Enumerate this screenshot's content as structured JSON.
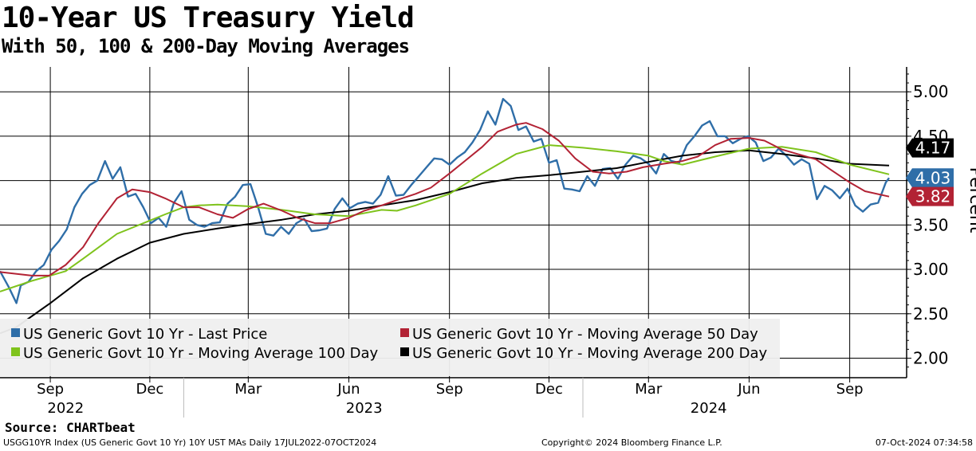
{
  "chart_data": {
    "type": "line",
    "title": "10-Year US Treasury Yield",
    "subtitle": "With 50, 100 & 200-Day Moving Averages",
    "ylabel": "Percent",
    "ylim": [
      1.78,
      5.28
    ],
    "y_ticks": [
      "5.00",
      "4.50",
      "4.00",
      "3.50",
      "3.00",
      "2.50",
      "2.00"
    ],
    "y_tick_values": [
      5.0,
      4.5,
      4.0,
      3.5,
      3.0,
      2.5,
      2.0
    ],
    "x_range": [
      "2022-07-17",
      "2024-10-07"
    ],
    "month_ticks": [
      {
        "label": "Sep",
        "date": "2022-09-01"
      },
      {
        "label": "Dec",
        "date": "2022-12-01"
      },
      {
        "label": "Mar",
        "date": "2023-03-01"
      },
      {
        "label": "Jun",
        "date": "2023-06-01"
      },
      {
        "label": "Sep",
        "date": "2023-09-01"
      },
      {
        "label": "Dec",
        "date": "2023-12-01"
      },
      {
        "label": "Mar",
        "date": "2024-03-01"
      },
      {
        "label": "Jun",
        "date": "2024-06-01"
      },
      {
        "label": "Sep",
        "date": "2024-09-01"
      }
    ],
    "year_labels": [
      {
        "label": "2022",
        "date": "2022-09-15"
      },
      {
        "label": "2023",
        "date": "2023-06-15"
      },
      {
        "label": "2024",
        "date": "2024-04-25"
      }
    ],
    "year_separators": [
      "2023-01-01",
      "2024-01-01"
    ],
    "grid": true,
    "legend_position": "bottom-left",
    "series": [
      {
        "name": "US Generic Govt 10 Yr - Last Price",
        "color": "#2f6ea8",
        "points": [
          [
            "2022-07-17",
            2.98
          ],
          [
            "2022-07-25",
            2.8
          ],
          [
            "2022-08-01",
            2.62
          ],
          [
            "2022-08-05",
            2.82
          ],
          [
            "2022-08-12",
            2.86
          ],
          [
            "2022-08-19",
            2.98
          ],
          [
            "2022-08-26",
            3.05
          ],
          [
            "2022-09-02",
            3.22
          ],
          [
            "2022-09-09",
            3.32
          ],
          [
            "2022-09-16",
            3.45
          ],
          [
            "2022-09-23",
            3.7
          ],
          [
            "2022-09-30",
            3.85
          ],
          [
            "2022-10-07",
            3.95
          ],
          [
            "2022-10-14",
            4.0
          ],
          [
            "2022-10-21",
            4.22
          ],
          [
            "2022-10-28",
            4.02
          ],
          [
            "2022-11-04",
            4.15
          ],
          [
            "2022-11-11",
            3.82
          ],
          [
            "2022-11-18",
            3.85
          ],
          [
            "2022-11-25",
            3.7
          ],
          [
            "2022-12-02",
            3.52
          ],
          [
            "2022-12-09",
            3.58
          ],
          [
            "2022-12-16",
            3.48
          ],
          [
            "2022-12-23",
            3.75
          ],
          [
            "2022-12-30",
            3.88
          ],
          [
            "2023-01-06",
            3.56
          ],
          [
            "2023-01-13",
            3.5
          ],
          [
            "2023-01-20",
            3.48
          ],
          [
            "2023-01-27",
            3.52
          ],
          [
            "2023-02-03",
            3.53
          ],
          [
            "2023-02-10",
            3.74
          ],
          [
            "2023-02-17",
            3.82
          ],
          [
            "2023-02-24",
            3.95
          ],
          [
            "2023-03-03",
            3.96
          ],
          [
            "2023-03-10",
            3.7
          ],
          [
            "2023-03-17",
            3.4
          ],
          [
            "2023-03-24",
            3.38
          ],
          [
            "2023-03-31",
            3.48
          ],
          [
            "2023-04-07",
            3.4
          ],
          [
            "2023-04-14",
            3.52
          ],
          [
            "2023-04-21",
            3.57
          ],
          [
            "2023-04-28",
            3.43
          ],
          [
            "2023-05-05",
            3.44
          ],
          [
            "2023-05-12",
            3.46
          ],
          [
            "2023-05-19",
            3.68
          ],
          [
            "2023-05-26",
            3.8
          ],
          [
            "2023-06-02",
            3.69
          ],
          [
            "2023-06-09",
            3.74
          ],
          [
            "2023-06-16",
            3.76
          ],
          [
            "2023-06-23",
            3.74
          ],
          [
            "2023-06-30",
            3.84
          ],
          [
            "2023-07-07",
            4.05
          ],
          [
            "2023-07-14",
            3.83
          ],
          [
            "2023-07-21",
            3.84
          ],
          [
            "2023-07-28",
            3.95
          ],
          [
            "2023-08-04",
            4.05
          ],
          [
            "2023-08-11",
            4.15
          ],
          [
            "2023-08-18",
            4.25
          ],
          [
            "2023-08-25",
            4.24
          ],
          [
            "2023-09-01",
            4.18
          ],
          [
            "2023-09-08",
            4.26
          ],
          [
            "2023-09-15",
            4.32
          ],
          [
            "2023-09-22",
            4.43
          ],
          [
            "2023-09-29",
            4.57
          ],
          [
            "2023-10-06",
            4.78
          ],
          [
            "2023-10-13",
            4.63
          ],
          [
            "2023-10-20",
            4.92
          ],
          [
            "2023-10-27",
            4.84
          ],
          [
            "2023-11-03",
            4.57
          ],
          [
            "2023-11-10",
            4.61
          ],
          [
            "2023-11-17",
            4.44
          ],
          [
            "2023-11-24",
            4.47
          ],
          [
            "2023-12-01",
            4.2
          ],
          [
            "2023-12-08",
            4.23
          ],
          [
            "2023-12-15",
            3.91
          ],
          [
            "2023-12-22",
            3.9
          ],
          [
            "2023-12-29",
            3.88
          ],
          [
            "2024-01-05",
            4.05
          ],
          [
            "2024-01-12",
            3.94
          ],
          [
            "2024-01-19",
            4.13
          ],
          [
            "2024-01-26",
            4.14
          ],
          [
            "2024-02-02",
            4.02
          ],
          [
            "2024-02-09",
            4.18
          ],
          [
            "2024-02-16",
            4.28
          ],
          [
            "2024-02-23",
            4.25
          ],
          [
            "2024-03-01",
            4.19
          ],
          [
            "2024-03-08",
            4.08
          ],
          [
            "2024-03-15",
            4.3
          ],
          [
            "2024-03-22",
            4.22
          ],
          [
            "2024-03-29",
            4.2
          ],
          [
            "2024-04-05",
            4.4
          ],
          [
            "2024-04-12",
            4.5
          ],
          [
            "2024-04-19",
            4.62
          ],
          [
            "2024-04-26",
            4.67
          ],
          [
            "2024-05-03",
            4.5
          ],
          [
            "2024-05-10",
            4.5
          ],
          [
            "2024-05-17",
            4.42
          ],
          [
            "2024-05-24",
            4.47
          ],
          [
            "2024-05-31",
            4.5
          ],
          [
            "2024-06-07",
            4.43
          ],
          [
            "2024-06-14",
            4.22
          ],
          [
            "2024-06-21",
            4.26
          ],
          [
            "2024-06-28",
            4.36
          ],
          [
            "2024-07-05",
            4.28
          ],
          [
            "2024-07-12",
            4.18
          ],
          [
            "2024-07-19",
            4.24
          ],
          [
            "2024-07-26",
            4.19
          ],
          [
            "2024-08-02",
            3.79
          ],
          [
            "2024-08-09",
            3.94
          ],
          [
            "2024-08-16",
            3.89
          ],
          [
            "2024-08-23",
            3.8
          ],
          [
            "2024-08-30",
            3.91
          ],
          [
            "2024-09-06",
            3.72
          ],
          [
            "2024-09-13",
            3.65
          ],
          [
            "2024-09-20",
            3.73
          ],
          [
            "2024-09-27",
            3.75
          ],
          [
            "2024-10-04",
            3.98
          ],
          [
            "2024-10-07",
            4.03
          ]
        ],
        "last_value_label": "4.03"
      },
      {
        "name": "US Generic Govt 10 Yr - Moving Average 50 Day",
        "color": "#b22234",
        "points": [
          [
            "2022-07-17",
            2.97
          ],
          [
            "2022-08-15",
            2.93
          ],
          [
            "2022-08-31",
            2.93
          ],
          [
            "2022-09-15",
            3.05
          ],
          [
            "2022-10-01",
            3.25
          ],
          [
            "2022-10-15",
            3.52
          ],
          [
            "2022-11-01",
            3.8
          ],
          [
            "2022-11-15",
            3.9
          ],
          [
            "2022-12-01",
            3.87
          ],
          [
            "2022-12-15",
            3.8
          ],
          [
            "2023-01-01",
            3.7
          ],
          [
            "2023-01-15",
            3.7
          ],
          [
            "2023-02-01",
            3.62
          ],
          [
            "2023-02-15",
            3.58
          ],
          [
            "2023-03-01",
            3.68
          ],
          [
            "2023-03-15",
            3.74
          ],
          [
            "2023-04-01",
            3.66
          ],
          [
            "2023-04-15",
            3.58
          ],
          [
            "2023-05-01",
            3.52
          ],
          [
            "2023-05-15",
            3.52
          ],
          [
            "2023-06-01",
            3.58
          ],
          [
            "2023-06-15",
            3.66
          ],
          [
            "2023-07-01",
            3.72
          ],
          [
            "2023-07-15",
            3.78
          ],
          [
            "2023-08-01",
            3.85
          ],
          [
            "2023-08-15",
            3.92
          ],
          [
            "2023-09-01",
            4.08
          ],
          [
            "2023-09-15",
            4.22
          ],
          [
            "2023-10-01",
            4.38
          ],
          [
            "2023-10-15",
            4.55
          ],
          [
            "2023-11-01",
            4.63
          ],
          [
            "2023-11-10",
            4.65
          ],
          [
            "2023-11-25",
            4.58
          ],
          [
            "2023-12-10",
            4.45
          ],
          [
            "2023-12-25",
            4.25
          ],
          [
            "2024-01-10",
            4.1
          ],
          [
            "2024-01-25",
            4.08
          ],
          [
            "2024-02-10",
            4.1
          ],
          [
            "2024-02-25",
            4.15
          ],
          [
            "2024-03-15",
            4.19
          ],
          [
            "2024-04-01",
            4.22
          ],
          [
            "2024-04-15",
            4.27
          ],
          [
            "2024-05-01",
            4.4
          ],
          [
            "2024-05-15",
            4.47
          ],
          [
            "2024-06-01",
            4.48
          ],
          [
            "2024-06-15",
            4.45
          ],
          [
            "2024-07-01",
            4.35
          ],
          [
            "2024-07-15",
            4.3
          ],
          [
            "2024-08-01",
            4.24
          ],
          [
            "2024-08-15",
            4.12
          ],
          [
            "2024-09-01",
            3.98
          ],
          [
            "2024-09-15",
            3.88
          ],
          [
            "2024-10-07",
            3.82
          ]
        ],
        "last_value_label": "3.82"
      },
      {
        "name": "US Generic Govt 10 Yr - Moving Average 100 Day",
        "color": "#7fc31c",
        "points": [
          [
            "2022-07-17",
            2.75
          ],
          [
            "2022-08-15",
            2.87
          ],
          [
            "2022-09-01",
            2.93
          ],
          [
            "2022-09-15",
            2.98
          ],
          [
            "2022-10-01",
            3.12
          ],
          [
            "2022-11-01",
            3.4
          ],
          [
            "2022-12-01",
            3.55
          ],
          [
            "2022-12-15",
            3.62
          ],
          [
            "2023-01-01",
            3.7
          ],
          [
            "2023-01-15",
            3.72
          ],
          [
            "2023-02-01",
            3.73
          ],
          [
            "2023-03-01",
            3.71
          ],
          [
            "2023-04-01",
            3.67
          ],
          [
            "2023-05-01",
            3.62
          ],
          [
            "2023-06-01",
            3.6
          ],
          [
            "2023-07-01",
            3.67
          ],
          [
            "2023-07-15",
            3.66
          ],
          [
            "2023-08-01",
            3.72
          ],
          [
            "2023-09-01",
            3.85
          ],
          [
            "2023-10-01",
            4.08
          ],
          [
            "2023-11-01",
            4.3
          ],
          [
            "2023-12-01",
            4.4
          ],
          [
            "2024-01-01",
            4.37
          ],
          [
            "2024-02-01",
            4.33
          ],
          [
            "2024-03-01",
            4.28
          ],
          [
            "2024-03-15",
            4.22
          ],
          [
            "2024-04-01",
            4.18
          ],
          [
            "2024-05-01",
            4.27
          ],
          [
            "2024-06-01",
            4.36
          ],
          [
            "2024-07-01",
            4.38
          ],
          [
            "2024-08-01",
            4.32
          ],
          [
            "2024-09-01",
            4.18
          ],
          [
            "2024-10-07",
            4.07
          ]
        ]
      },
      {
        "name": "US Generic Govt 10 Yr - Moving Average 200 Day",
        "color": "#000000",
        "points": [
          [
            "2022-07-17",
            2.28
          ],
          [
            "2022-08-01",
            2.35
          ],
          [
            "2022-09-01",
            2.62
          ],
          [
            "2022-10-01",
            2.9
          ],
          [
            "2022-11-01",
            3.12
          ],
          [
            "2022-12-01",
            3.3
          ],
          [
            "2023-01-01",
            3.4
          ],
          [
            "2023-02-01",
            3.46
          ],
          [
            "2023-03-01",
            3.51
          ],
          [
            "2023-04-01",
            3.56
          ],
          [
            "2023-05-01",
            3.62
          ],
          [
            "2023-06-01",
            3.66
          ],
          [
            "2023-07-01",
            3.72
          ],
          [
            "2023-08-01",
            3.78
          ],
          [
            "2023-09-01",
            3.87
          ],
          [
            "2023-10-01",
            3.97
          ],
          [
            "2023-11-01",
            4.03
          ],
          [
            "2023-12-01",
            4.06
          ],
          [
            "2024-01-01",
            4.1
          ],
          [
            "2024-02-01",
            4.14
          ],
          [
            "2024-03-01",
            4.21
          ],
          [
            "2024-04-01",
            4.28
          ],
          [
            "2024-05-01",
            4.32
          ],
          [
            "2024-06-01",
            4.34
          ],
          [
            "2024-07-01",
            4.3
          ],
          [
            "2024-08-01",
            4.25
          ],
          [
            "2024-09-01",
            4.19
          ],
          [
            "2024-10-07",
            4.17
          ]
        ],
        "last_value_label": "4.17"
      }
    ]
  },
  "legend": {
    "items": [
      {
        "label": "US Generic Govt 10 Yr - Last Price",
        "color": "#2f6ea8"
      },
      {
        "label": "US Generic Govt 10 Yr - Moving Average 50 Day",
        "color": "#b22234"
      },
      {
        "label": "US Generic Govt 10 Yr - Moving Average 100 Day",
        "color": "#7fc31c"
      },
      {
        "label": "US Generic Govt 10 Yr - Moving Average 200 Day",
        "color": "#000000"
      }
    ]
  },
  "source": "Source: CHARTbeat",
  "footer": {
    "left": "USGG10YR Index (US Generic Govt 10 Yr) 10Y UST MAs  Daily 17JUL2022-07OCT2024",
    "center": "Copyright© 2024 Bloomberg Finance L.P.",
    "right": "07-Oct-2024 07:34:58"
  }
}
